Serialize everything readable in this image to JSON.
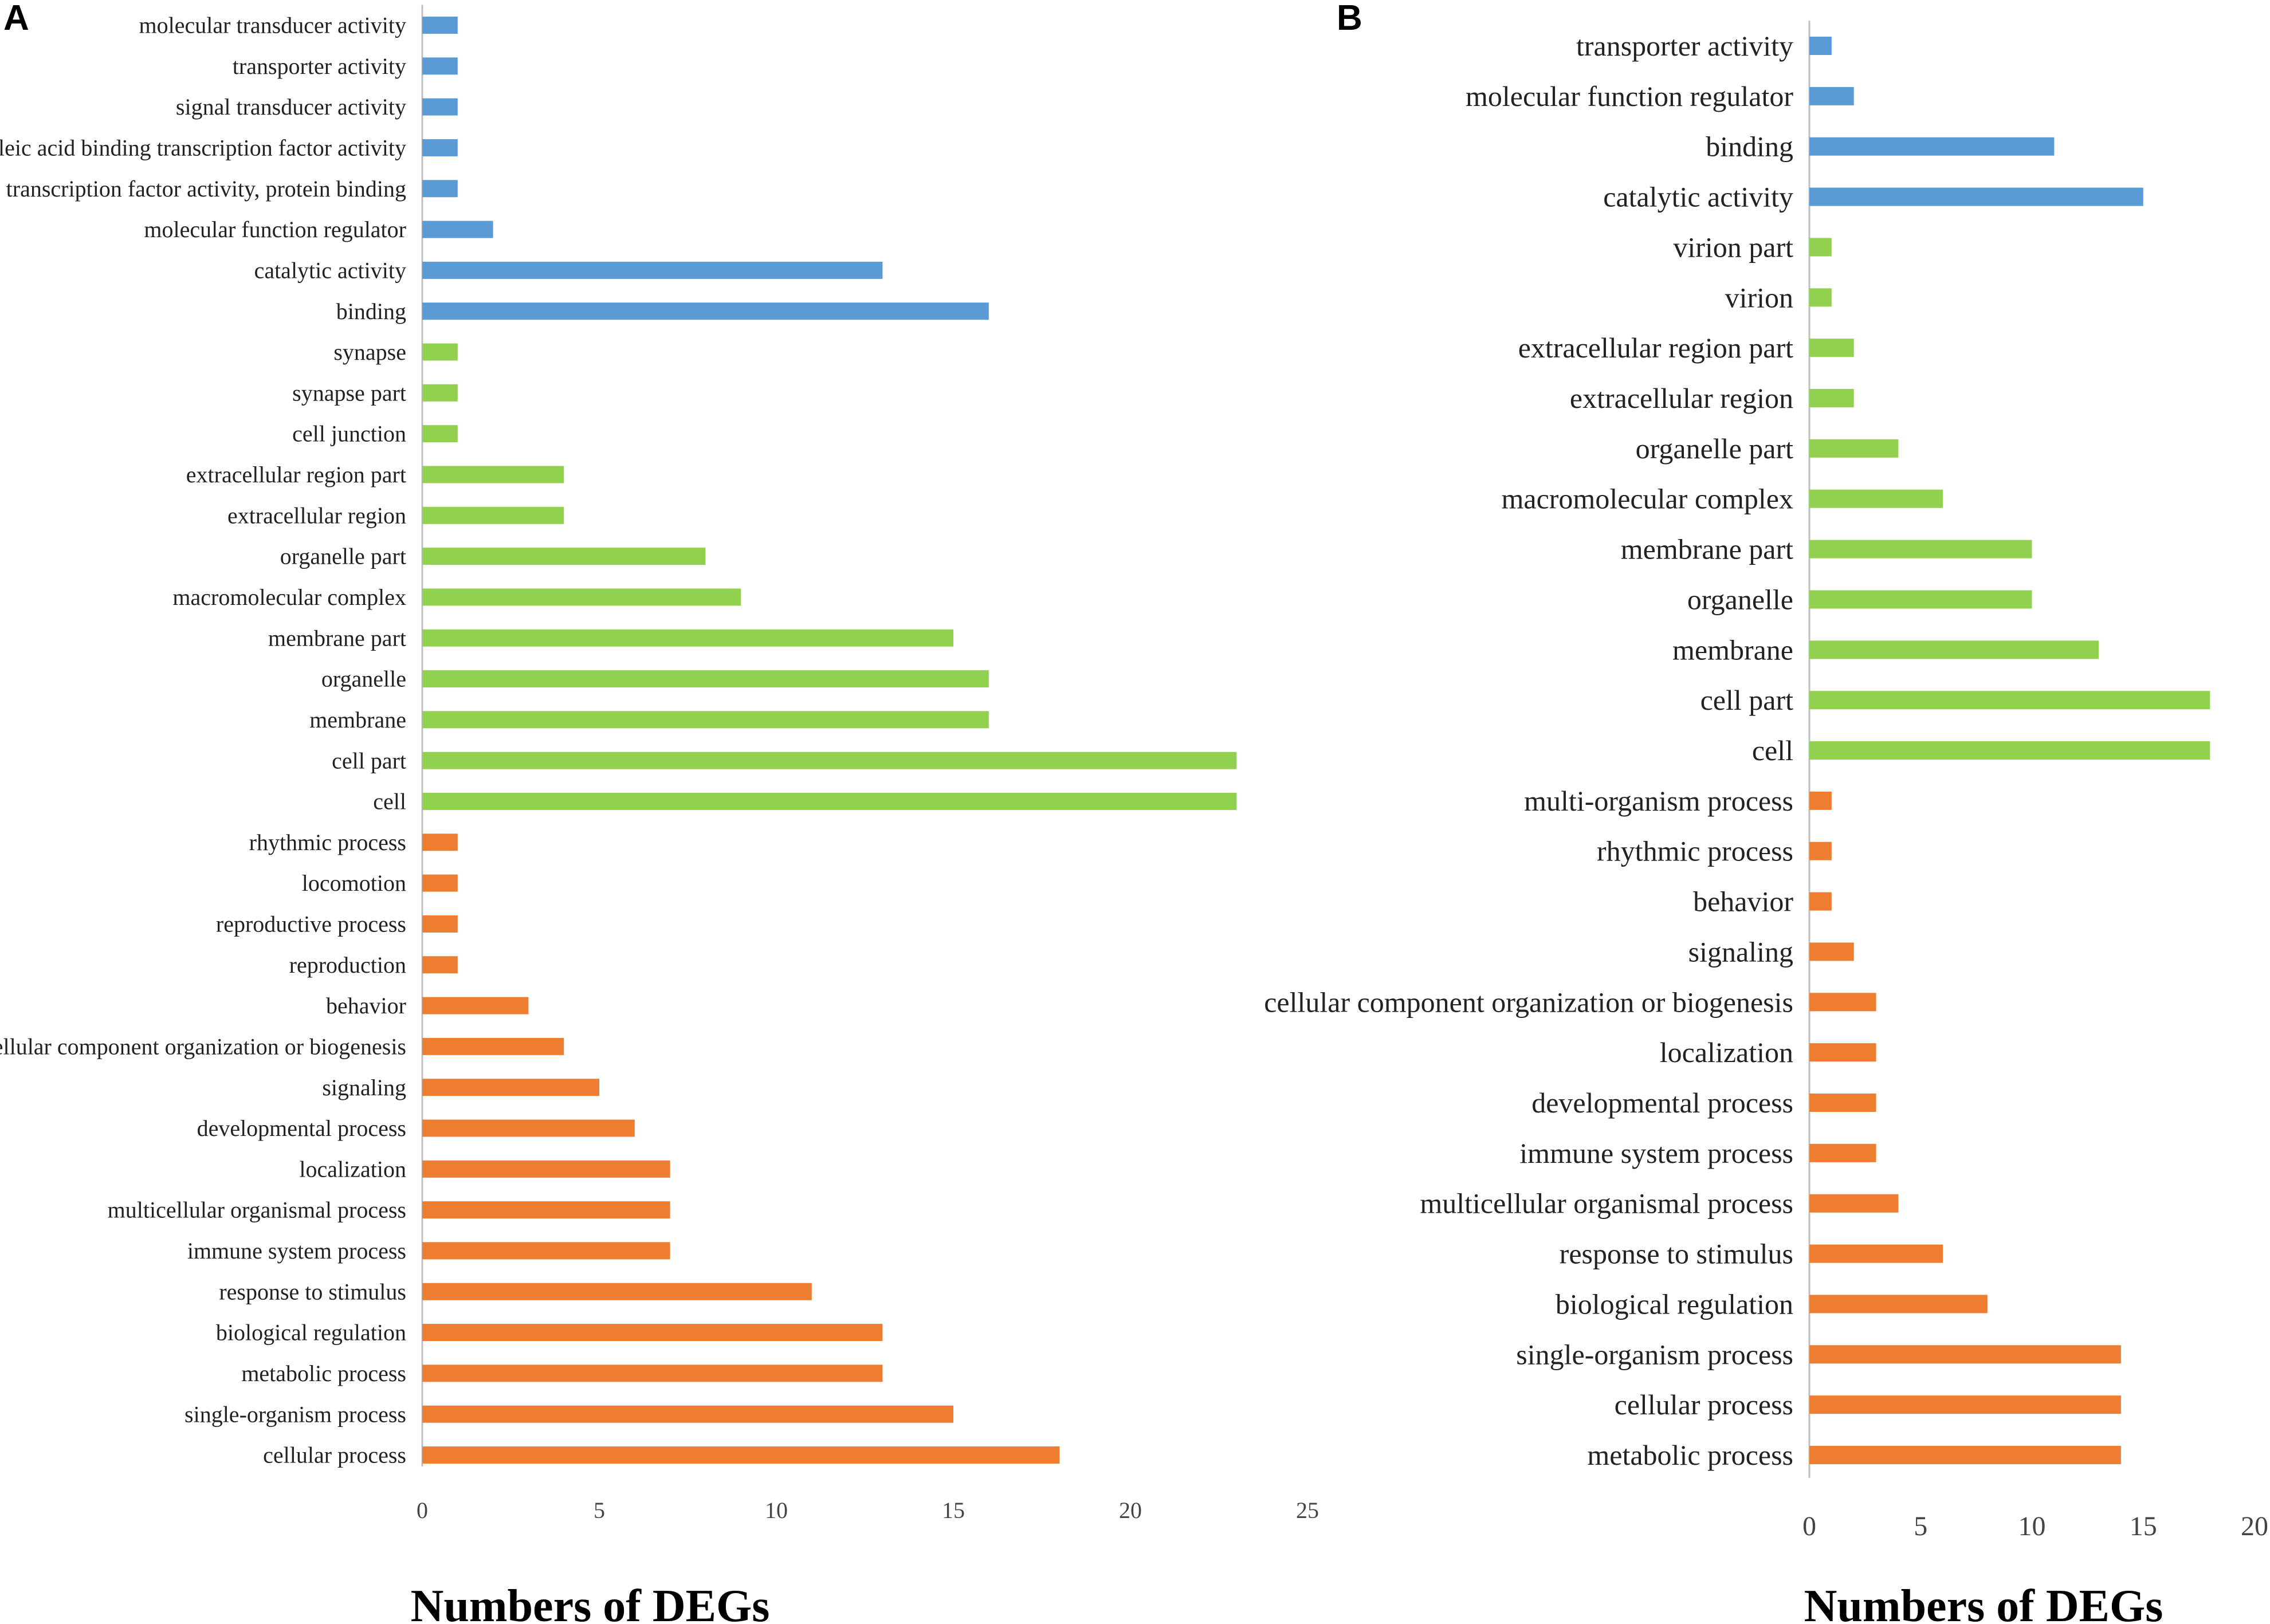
{
  "chart_data": [
    {
      "type": "bar",
      "orientation": "horizontal",
      "panel_label": "A",
      "xlabel": "Numbers of DEGs",
      "xlim": [
        0,
        25
      ],
      "xticks": [
        0,
        5,
        10,
        15,
        20,
        25
      ],
      "colors": {
        "molecular_function": "#5b9bd5",
        "cellular_component": "#92d050",
        "biological_process": "#ed7d31"
      },
      "bars": [
        {
          "category": "molecular transducer activity",
          "value": 1,
          "group": "molecular_function"
        },
        {
          "category": "transporter activity",
          "value": 1,
          "group": "molecular_function"
        },
        {
          "category": "signal transducer activity",
          "value": 1,
          "group": "molecular_function"
        },
        {
          "category": "nucleic acid binding transcription factor activity",
          "value": 1,
          "group": "molecular_function"
        },
        {
          "category": "transcription factor activity, protein binding",
          "value": 1,
          "group": "molecular_function"
        },
        {
          "category": "molecular function regulator",
          "value": 2,
          "group": "molecular_function"
        },
        {
          "category": "catalytic activity",
          "value": 13,
          "group": "molecular_function"
        },
        {
          "category": "binding",
          "value": 16,
          "group": "molecular_function"
        },
        {
          "category": "synapse",
          "value": 1,
          "group": "cellular_component"
        },
        {
          "category": "synapse part",
          "value": 1,
          "group": "cellular_component"
        },
        {
          "category": "cell junction",
          "value": 1,
          "group": "cellular_component"
        },
        {
          "category": "extracellular region part",
          "value": 4,
          "group": "cellular_component"
        },
        {
          "category": "extracellular region",
          "value": 4,
          "group": "cellular_component"
        },
        {
          "category": "organelle part",
          "value": 8,
          "group": "cellular_component"
        },
        {
          "category": "macromolecular complex",
          "value": 9,
          "group": "cellular_component"
        },
        {
          "category": "membrane part",
          "value": 15,
          "group": "cellular_component"
        },
        {
          "category": "organelle",
          "value": 16,
          "group": "cellular_component"
        },
        {
          "category": "membrane",
          "value": 16,
          "group": "cellular_component"
        },
        {
          "category": "cell part",
          "value": 23,
          "group": "cellular_component"
        },
        {
          "category": "cell",
          "value": 23,
          "group": "cellular_component"
        },
        {
          "category": "rhythmic process",
          "value": 1,
          "group": "biological_process"
        },
        {
          "category": "locomotion",
          "value": 1,
          "group": "biological_process"
        },
        {
          "category": "reproductive process",
          "value": 1,
          "group": "biological_process"
        },
        {
          "category": "reproduction",
          "value": 1,
          "group": "biological_process"
        },
        {
          "category": "behavior",
          "value": 3,
          "group": "biological_process"
        },
        {
          "category": "cellular component organization or biogenesis",
          "value": 4,
          "group": "biological_process"
        },
        {
          "category": "signaling",
          "value": 5,
          "group": "biological_process"
        },
        {
          "category": "developmental process",
          "value": 6,
          "group": "biological_process"
        },
        {
          "category": "localization",
          "value": 7,
          "group": "biological_process"
        },
        {
          "category": "multicellular organismal process",
          "value": 7,
          "group": "biological_process"
        },
        {
          "category": "immune system process",
          "value": 7,
          "group": "biological_process"
        },
        {
          "category": "response to stimulus",
          "value": 11,
          "group": "biological_process"
        },
        {
          "category": "biological regulation",
          "value": 13,
          "group": "biological_process"
        },
        {
          "category": "metabolic process",
          "value": 13,
          "group": "biological_process"
        },
        {
          "category": "single-organism process",
          "value": 15,
          "group": "biological_process"
        },
        {
          "category": "cellular process",
          "value": 18,
          "group": "biological_process"
        }
      ]
    },
    {
      "type": "bar",
      "orientation": "horizontal",
      "panel_label": "B",
      "xlabel": "Numbers of DEGs",
      "xlim": [
        0,
        20
      ],
      "xticks": [
        0,
        5,
        10,
        15,
        20
      ],
      "colors": {
        "molecular_function": "#5b9bd5",
        "cellular_component": "#92d050",
        "biological_process": "#ed7d31"
      },
      "bars": [
        {
          "category": "transporter activity",
          "value": 1,
          "group": "molecular_function"
        },
        {
          "category": "molecular function regulator",
          "value": 2,
          "group": "molecular_function"
        },
        {
          "category": "binding",
          "value": 11,
          "group": "molecular_function"
        },
        {
          "category": "catalytic activity",
          "value": 15,
          "group": "molecular_function"
        },
        {
          "category": "virion part",
          "value": 1,
          "group": "cellular_component"
        },
        {
          "category": "virion",
          "value": 1,
          "group": "cellular_component"
        },
        {
          "category": "extracellular region part",
          "value": 2,
          "group": "cellular_component"
        },
        {
          "category": "extracellular region",
          "value": 2,
          "group": "cellular_component"
        },
        {
          "category": "organelle part",
          "value": 4,
          "group": "cellular_component"
        },
        {
          "category": "macromolecular complex",
          "value": 6,
          "group": "cellular_component"
        },
        {
          "category": "membrane part",
          "value": 10,
          "group": "cellular_component"
        },
        {
          "category": "organelle",
          "value": 10,
          "group": "cellular_component"
        },
        {
          "category": "membrane",
          "value": 13,
          "group": "cellular_component"
        },
        {
          "category": "cell part",
          "value": 18,
          "group": "cellular_component"
        },
        {
          "category": "cell",
          "value": 18,
          "group": "cellular_component"
        },
        {
          "category": "multi-organism process",
          "value": 1,
          "group": "biological_process"
        },
        {
          "category": "rhythmic process",
          "value": 1,
          "group": "biological_process"
        },
        {
          "category": "behavior",
          "value": 1,
          "group": "biological_process"
        },
        {
          "category": "signaling",
          "value": 2,
          "group": "biological_process"
        },
        {
          "category": "cellular component organization or biogenesis",
          "value": 3,
          "group": "biological_process"
        },
        {
          "category": "localization",
          "value": 3,
          "group": "biological_process"
        },
        {
          "category": "developmental process",
          "value": 3,
          "group": "biological_process"
        },
        {
          "category": "immune system process",
          "value": 3,
          "group": "biological_process"
        },
        {
          "category": "multicellular organismal process",
          "value": 4,
          "group": "biological_process"
        },
        {
          "category": "response to stimulus",
          "value": 6,
          "group": "biological_process"
        },
        {
          "category": "biological regulation",
          "value": 8,
          "group": "biological_process"
        },
        {
          "category": "single-organism process",
          "value": 14,
          "group": "biological_process"
        },
        {
          "category": "cellular process",
          "value": 14,
          "group": "biological_process"
        },
        {
          "category": "metabolic process",
          "value": 14,
          "group": "biological_process"
        }
      ]
    }
  ]
}
